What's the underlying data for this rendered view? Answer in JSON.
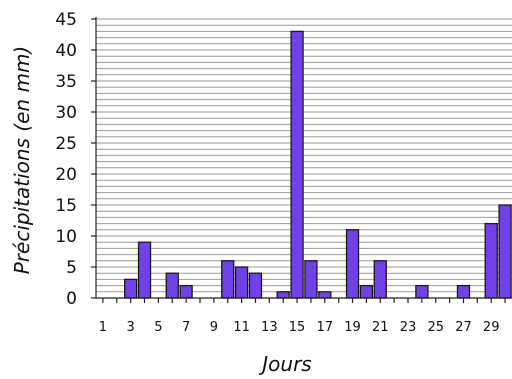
{
  "chart_data": {
    "type": "bar",
    "xlabel": "Jours",
    "ylabel": "Précipitations (en mm)",
    "ylim": [
      0,
      45
    ],
    "y_ticks": [
      "0",
      "5",
      "10",
      "15",
      "20",
      "25",
      "30",
      "35",
      "40",
      "45"
    ],
    "x_ticks": [
      "1",
      "3",
      "5",
      "7",
      "9",
      "11",
      "13",
      "15",
      "17",
      "19",
      "21",
      "23",
      "25",
      "27",
      "29"
    ],
    "grid": true,
    "bar_color": "#7040e8",
    "x": [
      1,
      2,
      3,
      4,
      5,
      6,
      7,
      8,
      9,
      10,
      11,
      12,
      13,
      14,
      15,
      16,
      17,
      18,
      19,
      20,
      21,
      22,
      23,
      24,
      25,
      26,
      27,
      28,
      29,
      30
    ],
    "values": [
      0,
      0,
      3,
      9,
      0,
      4,
      2,
      0,
      0,
      6,
      5,
      4,
      0,
      1,
      43,
      6,
      1,
      0,
      11,
      2,
      6,
      0,
      0,
      2,
      0,
      0,
      2,
      0,
      12,
      15
    ]
  }
}
